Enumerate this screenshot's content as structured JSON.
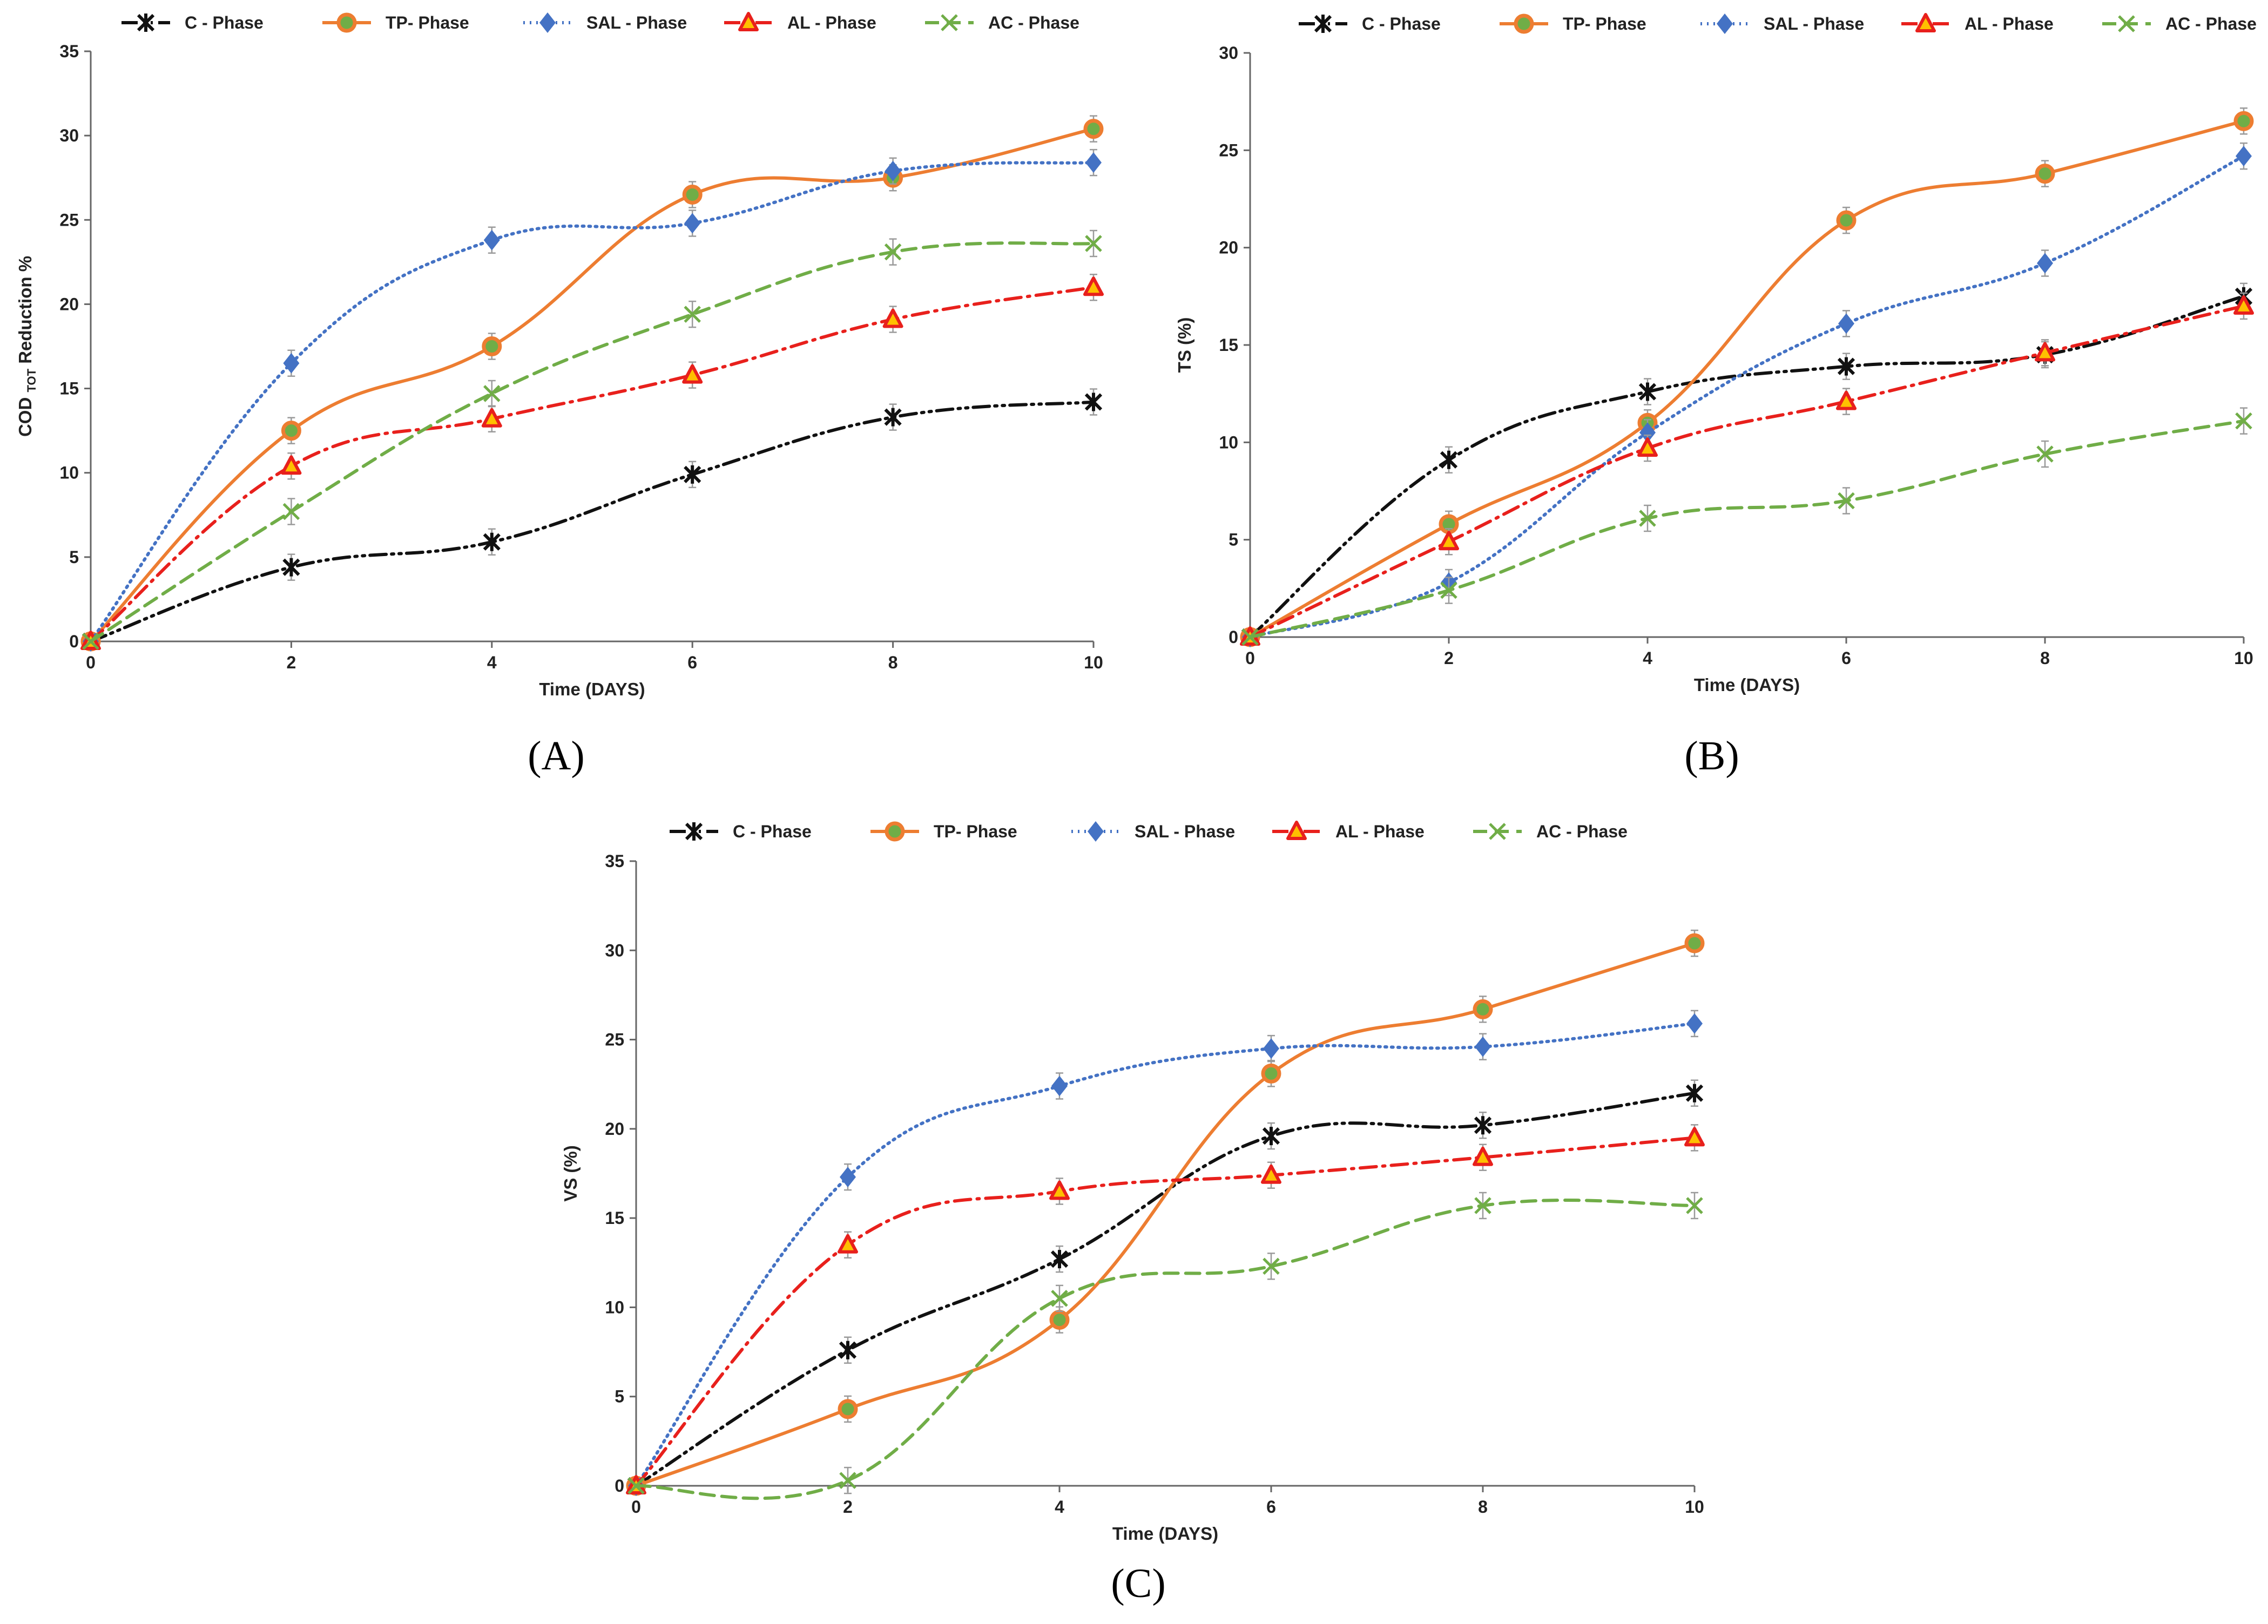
{
  "figure": {
    "panel_labels": [
      "(A)",
      "(B)",
      "(C)"
    ]
  },
  "series_styles": [
    {
      "name": "C - Phase",
      "color": "#111111",
      "dash": "dash-dot-dot",
      "marker": "asterisk-icon"
    },
    {
      "name": "TP- Phase",
      "color": "#ED7D31",
      "dash": "solid",
      "marker": "circle-icon"
    },
    {
      "name": "SAL - Phase",
      "color": "#4472C4",
      "dash": "dotted",
      "marker": "diamond-icon"
    },
    {
      "name": "AL - Phase",
      "color": "#E8201C",
      "dash": "dash-dot",
      "marker": "triangle-icon"
    },
    {
      "name": "AC - Phase",
      "color": "#70AD47",
      "dash": "dashed",
      "marker": "x-icon"
    }
  ],
  "chart_data": [
    {
      "id": "A",
      "type": "line",
      "xlabel": "Time (DAYS)",
      "ylabel": "COD TOT Reduction %",
      "ylabel_parts": {
        "pre": "COD ",
        "sub": "TOT",
        "post": " Reduction %"
      },
      "xlim": [
        0,
        10
      ],
      "ylim": [
        0,
        35
      ],
      "x_ticks": [
        0,
        2,
        4,
        6,
        8,
        10
      ],
      "y_ticks": [
        0,
        5,
        10,
        15,
        20,
        25,
        30,
        35
      ],
      "legend": "top",
      "x": [
        0,
        2,
        4,
        6,
        8,
        10
      ],
      "series": [
        {
          "name": "C - Phase",
          "values": [
            0,
            4.4,
            5.9,
            9.9,
            13.3,
            14.2
          ]
        },
        {
          "name": "TP- Phase",
          "values": [
            0,
            12.5,
            17.5,
            26.5,
            27.5,
            30.4
          ]
        },
        {
          "name": "SAL - Phase",
          "values": [
            0,
            16.5,
            23.8,
            24.8,
            27.9,
            28.4
          ]
        },
        {
          "name": "AL - Phase",
          "values": [
            0,
            10.4,
            13.2,
            15.8,
            19.1,
            21.0
          ]
        },
        {
          "name": "AC - Phase",
          "values": [
            0,
            7.7,
            14.7,
            19.4,
            23.1,
            23.6
          ]
        }
      ]
    },
    {
      "id": "B",
      "type": "line",
      "xlabel": "Time (DAYS)",
      "ylabel": "TS (%)",
      "xlim": [
        0,
        10
      ],
      "ylim": [
        0,
        30
      ],
      "x_ticks": [
        0,
        2,
        4,
        6,
        8,
        10
      ],
      "y_ticks": [
        0,
        5,
        10,
        15,
        20,
        25,
        30
      ],
      "legend": "top",
      "x": [
        0,
        2,
        4,
        6,
        8,
        10
      ],
      "series": [
        {
          "name": "C - Phase",
          "values": [
            0,
            9.1,
            12.6,
            13.9,
            14.5,
            17.5
          ]
        },
        {
          "name": "TP- Phase",
          "values": [
            0,
            5.8,
            11.0,
            21.4,
            23.8,
            26.5
          ]
        },
        {
          "name": "SAL - Phase",
          "values": [
            0,
            2.8,
            10.5,
            16.1,
            19.2,
            24.7
          ]
        },
        {
          "name": "AL - Phase",
          "values": [
            0,
            4.9,
            9.7,
            12.1,
            14.6,
            17.0
          ]
        },
        {
          "name": "AC - Phase",
          "values": [
            0,
            2.4,
            6.1,
            7.0,
            9.4,
            11.1
          ]
        }
      ]
    },
    {
      "id": "C",
      "type": "line",
      "xlabel": "Time (DAYS)",
      "ylabel": "VS (%)",
      "xlim": [
        0,
        10
      ],
      "ylim": [
        0,
        35
      ],
      "x_ticks": [
        0,
        2,
        4,
        6,
        8,
        10
      ],
      "y_ticks": [
        0,
        5,
        10,
        15,
        20,
        25,
        30,
        35
      ],
      "legend": "top",
      "x": [
        0,
        2,
        4,
        6,
        8,
        10
      ],
      "series": [
        {
          "name": "C - Phase",
          "values": [
            0,
            7.6,
            12.7,
            19.6,
            20.2,
            22.0
          ]
        },
        {
          "name": "TP- Phase",
          "values": [
            0,
            4.3,
            9.3,
            23.1,
            26.7,
            30.4
          ]
        },
        {
          "name": "SAL - Phase",
          "values": [
            0,
            17.3,
            22.4,
            24.5,
            24.6,
            25.9
          ]
        },
        {
          "name": "AL - Phase",
          "values": [
            0,
            13.5,
            16.5,
            17.4,
            18.4,
            19.5
          ]
        },
        {
          "name": "AC - Phase",
          "values": [
            0,
            0.3,
            10.5,
            12.3,
            15.7,
            15.7
          ]
        }
      ]
    }
  ]
}
